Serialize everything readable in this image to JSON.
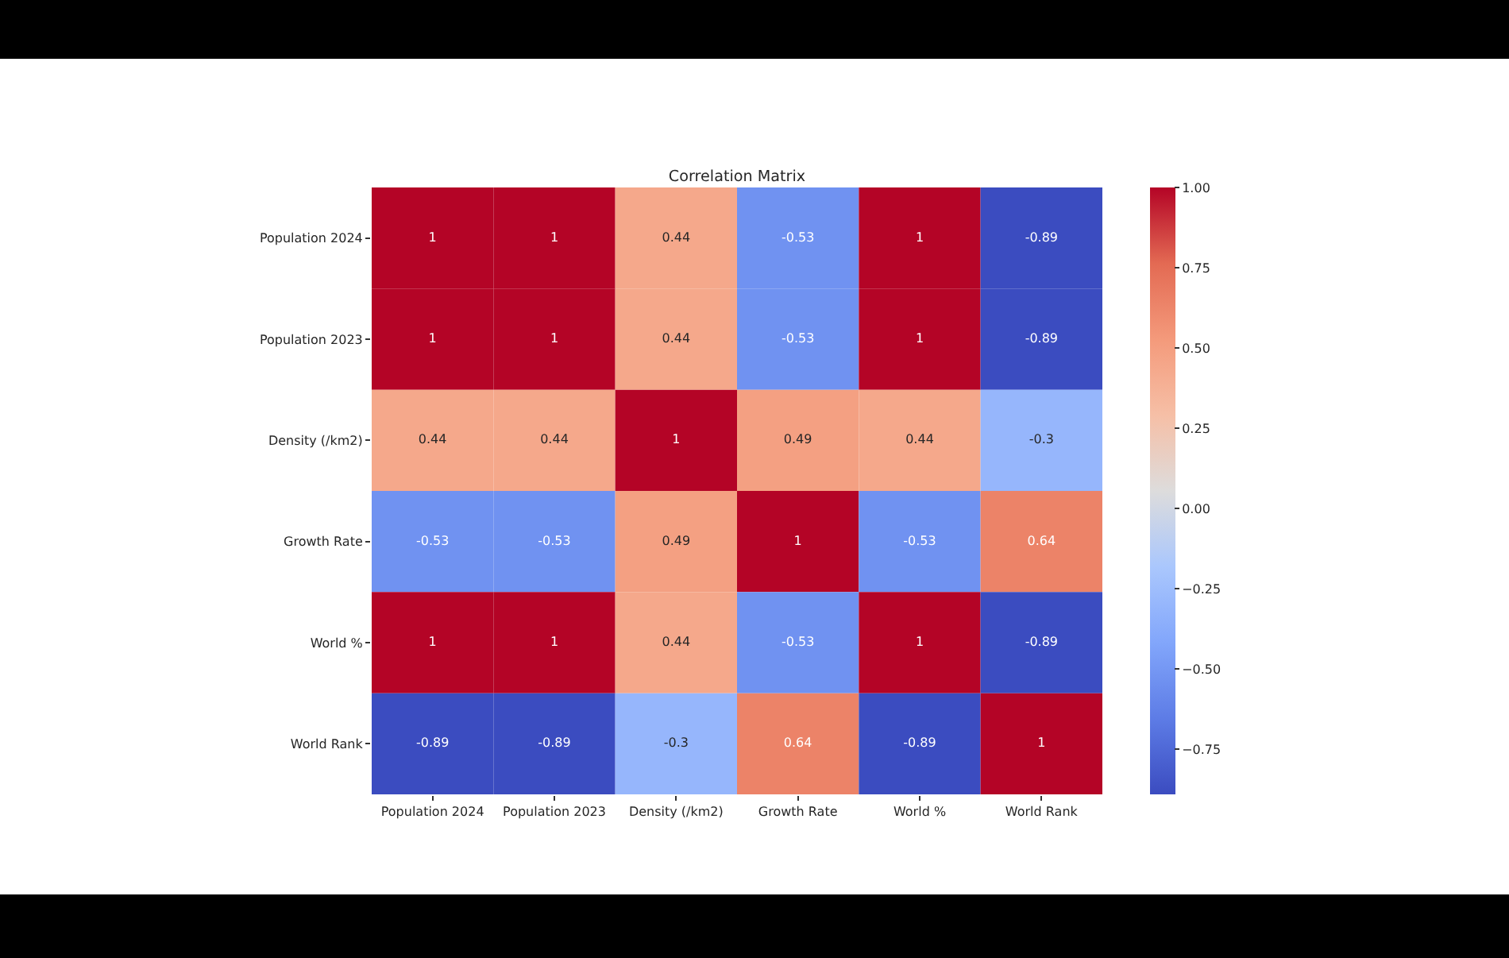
{
  "chart_data": {
    "type": "heatmap",
    "title": "Correlation Matrix",
    "categories": [
      "Population 2024",
      "Population 2023",
      "Density (/km2)",
      "Growth Rate",
      "World %",
      "World Rank"
    ],
    "y_categories": [
      "Population 2024",
      "Population 2023",
      "Density (/km2)",
      "Growth Rate",
      "World %",
      "World Rank"
    ],
    "cells": [
      [
        1,
        1,
        0.44,
        -0.53,
        1,
        -0.89
      ],
      [
        1,
        1,
        0.44,
        -0.53,
        1,
        -0.89
      ],
      [
        0.44,
        0.44,
        1,
        0.49,
        0.44,
        -0.3
      ],
      [
        -0.53,
        -0.53,
        0.49,
        1,
        -0.53,
        0.64
      ],
      [
        1,
        1,
        0.44,
        -0.53,
        1,
        -0.89
      ],
      [
        -0.89,
        -0.89,
        -0.3,
        0.64,
        -0.89,
        1
      ]
    ],
    "data_labels": true,
    "clim": [
      -0.89,
      1
    ],
    "cticks": [
      {
        "value": -0.75,
        "label": "−0.75"
      },
      {
        "value": -0.5,
        "label": "−0.50"
      },
      {
        "value": -0.25,
        "label": "−0.25"
      },
      {
        "value": 0,
        "label": "0.00"
      },
      {
        "value": 0.25,
        "label": "0.25"
      },
      {
        "value": 0.5,
        "label": "0.50"
      },
      {
        "value": 0.75,
        "label": "0.75"
      },
      {
        "value": 1,
        "label": "1.00"
      }
    ]
  }
}
